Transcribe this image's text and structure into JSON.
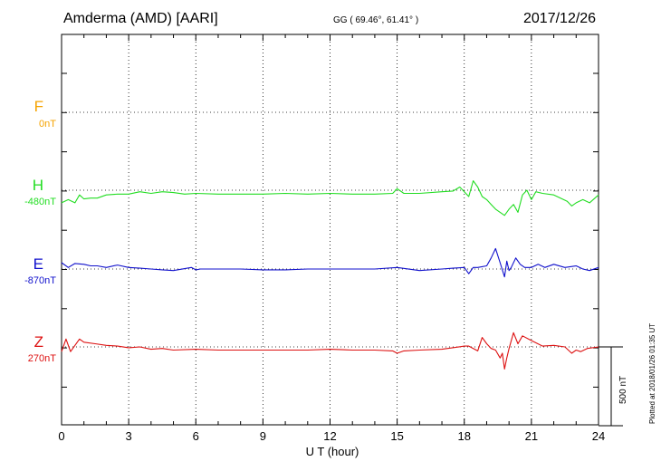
{
  "header": {
    "station": "Amderma (AMD)  [AARI]",
    "coords": "GG ( 69.46°,  61.41° )",
    "date": "2017/12/26"
  },
  "components": [
    {
      "name": "F",
      "baseline": "0nT",
      "color": "#f5a300"
    },
    {
      "name": "H",
      "baseline": "-480nT",
      "color": "#22dd22"
    },
    {
      "name": "E",
      "baseline": "-870nT",
      "color": "#1010cc"
    },
    {
      "name": "Z",
      "baseline": "270nT",
      "color": "#dd1111"
    }
  ],
  "scale_label": "500 nT",
  "plotted_label": "Plotted at 2018/01/26 01:35 UT",
  "chart_data": {
    "type": "line",
    "xlabel": "U T (hour)",
    "xlim": [
      0,
      24
    ],
    "xticks": [
      0,
      3,
      6,
      9,
      12,
      15,
      18,
      21,
      24
    ],
    "grid": true,
    "series": [
      {
        "name": "H",
        "color": "#22dd22",
        "x": [
          0,
          0.3,
          0.6,
          0.8,
          1.0,
          1.3,
          1.6,
          2.0,
          2.5,
          3.0,
          3.5,
          4.0,
          4.5,
          5.0,
          5.5,
          6.0,
          7.0,
          8.0,
          9.0,
          10.0,
          11.0,
          12.0,
          13.0,
          14.0,
          14.8,
          15.0,
          15.3,
          16.0,
          17.0,
          17.5,
          17.8,
          18.0,
          18.2,
          18.4,
          18.6,
          18.8,
          19.0,
          19.2,
          19.4,
          19.6,
          19.8,
          20.0,
          20.2,
          20.4,
          20.6,
          20.8,
          21.0,
          21.2,
          21.5,
          22.0,
          22.3,
          22.6,
          22.8,
          23.0,
          23.3,
          23.6,
          24.0
        ],
        "y": [
          -560,
          -540,
          -560,
          -510,
          -535,
          -530,
          -530,
          -510,
          -505,
          -505,
          -490,
          -500,
          -490,
          -495,
          -505,
          -500,
          -505,
          -505,
          -505,
          -500,
          -505,
          -500,
          -505,
          -505,
          -500,
          -470,
          -500,
          -500,
          -490,
          -485,
          -460,
          -490,
          -520,
          -420,
          -460,
          -520,
          -540,
          -570,
          -600,
          -620,
          -640,
          -600,
          -570,
          -620,
          -510,
          -480,
          -540,
          -490,
          -500,
          -510,
          -530,
          -550,
          -580,
          -560,
          -540,
          -560,
          -510
        ]
      },
      {
        "name": "E",
        "color": "#1010cc",
        "x": [
          0,
          0.3,
          0.6,
          1.0,
          1.3,
          1.6,
          2.0,
          2.5,
          3.0,
          3.5,
          4.0,
          4.5,
          5.0,
          5.8,
          6.0,
          6.2,
          7.0,
          8.0,
          9.0,
          10.0,
          11.0,
          12.0,
          13.0,
          14.0,
          15.0,
          16.0,
          17.0,
          17.5,
          18.0,
          18.2,
          18.4,
          18.6,
          19.0,
          19.2,
          19.4,
          19.6,
          19.8,
          19.9,
          20.0,
          20.1,
          20.3,
          20.5,
          20.7,
          21.0,
          21.3,
          21.6,
          22.0,
          22.5,
          23.0,
          23.3,
          23.6,
          24.0
        ],
        "y": [
          -830,
          -860,
          -835,
          -840,
          -850,
          -850,
          -860,
          -845,
          -860,
          -865,
          -870,
          -875,
          -880,
          -860,
          -875,
          -870,
          -870,
          -870,
          -875,
          -875,
          -870,
          -870,
          -870,
          -870,
          -860,
          -880,
          -870,
          -865,
          -860,
          -900,
          -860,
          -860,
          -850,
          -800,
          -740,
          -830,
          -920,
          -820,
          -880,
          -860,
          -800,
          -840,
          -860,
          -860,
          -840,
          -860,
          -840,
          -860,
          -850,
          -870,
          -880,
          -860
        ]
      },
      {
        "name": "Z",
        "color": "#dd1111",
        "x": [
          0,
          0.2,
          0.4,
          0.6,
          0.8,
          1.0,
          1.5,
          2.0,
          2.5,
          3.0,
          3.5,
          4.0,
          4.5,
          5.0,
          6.0,
          7.0,
          8.0,
          9.0,
          10.0,
          11.0,
          12.0,
          13.0,
          14.0,
          14.8,
          15.0,
          15.3,
          16.0,
          17.0,
          18.0,
          18.2,
          18.6,
          18.8,
          19.0,
          19.2,
          19.4,
          19.6,
          19.7,
          19.8,
          19.9,
          20.0,
          20.2,
          20.4,
          20.6,
          21.0,
          21.5,
          22.0,
          22.5,
          22.8,
          23.0,
          23.2,
          23.5,
          24.0
        ],
        "y": [
          240,
          320,
          240,
          280,
          320,
          300,
          290,
          280,
          275,
          265,
          270,
          255,
          260,
          250,
          255,
          250,
          250,
          250,
          250,
          250,
          255,
          250,
          250,
          245,
          230,
          245,
          250,
          255,
          275,
          275,
          245,
          330,
          290,
          260,
          250,
          200,
          230,
          130,
          200,
          260,
          360,
          290,
          340,
          310,
          275,
          280,
          270,
          230,
          250,
          240,
          260,
          270
        ]
      }
    ]
  }
}
